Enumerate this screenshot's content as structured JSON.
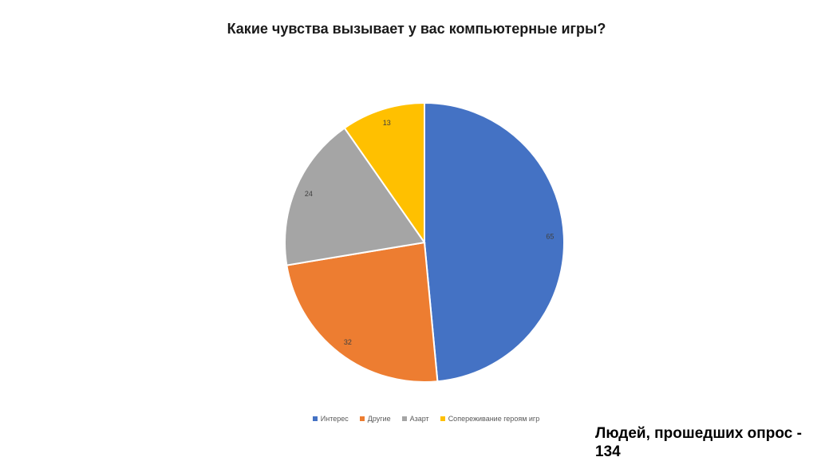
{
  "chart_data": {
    "type": "pie",
    "title": "Какие чувства вызывает у вас компьютерные игры?",
    "categories": [
      "Интерес",
      "Другие",
      "Азарт",
      "Сопереживание героям игр"
    ],
    "values": [
      65,
      32,
      24,
      13
    ],
    "colors": [
      "#4472C4",
      "#ED7D31",
      "#A5A5A5",
      "#FFC000"
    ],
    "legend_position": "bottom",
    "data_labels": true
  },
  "legend": {
    "items": [
      {
        "label": "Интерес",
        "color": "#4472C4"
      },
      {
        "label": "Другие",
        "color": "#ED7D31"
      },
      {
        "label": "Азарт",
        "color": "#A5A5A5"
      },
      {
        "label": "Сопереживание героям игр",
        "color": "#FFC000"
      }
    ]
  },
  "footnote": "Людей, прошедших опрос - 134"
}
